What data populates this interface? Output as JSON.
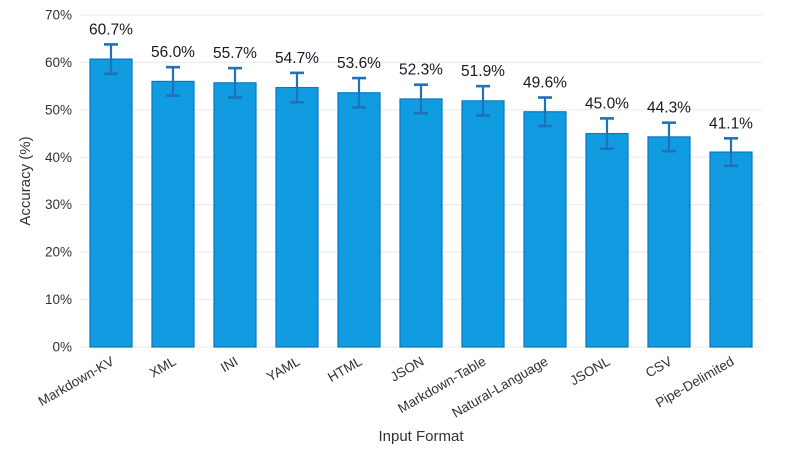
{
  "chart_data": {
    "type": "bar",
    "title": "",
    "xlabel": "Input Format",
    "ylabel": "Accuracy (%)",
    "categories": [
      "Markdown-KV",
      "XML",
      "INI",
      "YAML",
      "HTML",
      "JSON",
      "Markdown-Table",
      "Natural-Language",
      "JSONL",
      "CSV",
      "Pipe-Delimited"
    ],
    "values": [
      60.7,
      56.0,
      55.7,
      54.7,
      53.6,
      52.3,
      51.9,
      49.6,
      45.0,
      44.3,
      41.1
    ],
    "errors": [
      3.1,
      3.0,
      3.1,
      3.1,
      3.1,
      3.0,
      3.1,
      3.0,
      3.2,
      3.0,
      2.9
    ],
    "value_labels": [
      "60.7%",
      "56.0%",
      "55.7%",
      "54.7%",
      "53.6%",
      "52.3%",
      "51.9%",
      "49.6%",
      "45.0%",
      "44.3%",
      "41.1%"
    ],
    "yticks": [
      0,
      10,
      20,
      30,
      40,
      50,
      60,
      70
    ],
    "ytick_labels": [
      "0%",
      "10%",
      "20%",
      "30%",
      "40%",
      "50%",
      "60%",
      "70%"
    ],
    "ylim": [
      0,
      70
    ],
    "grid": true,
    "legend": "none",
    "colors": {
      "bar_fill": "#119CE2",
      "bar_border": "#0879BF",
      "error_bar": "#1F72B8",
      "grid": "#E9EDF4",
      "label_text": "#16191F",
      "tick_text": "#2E323A"
    }
  }
}
